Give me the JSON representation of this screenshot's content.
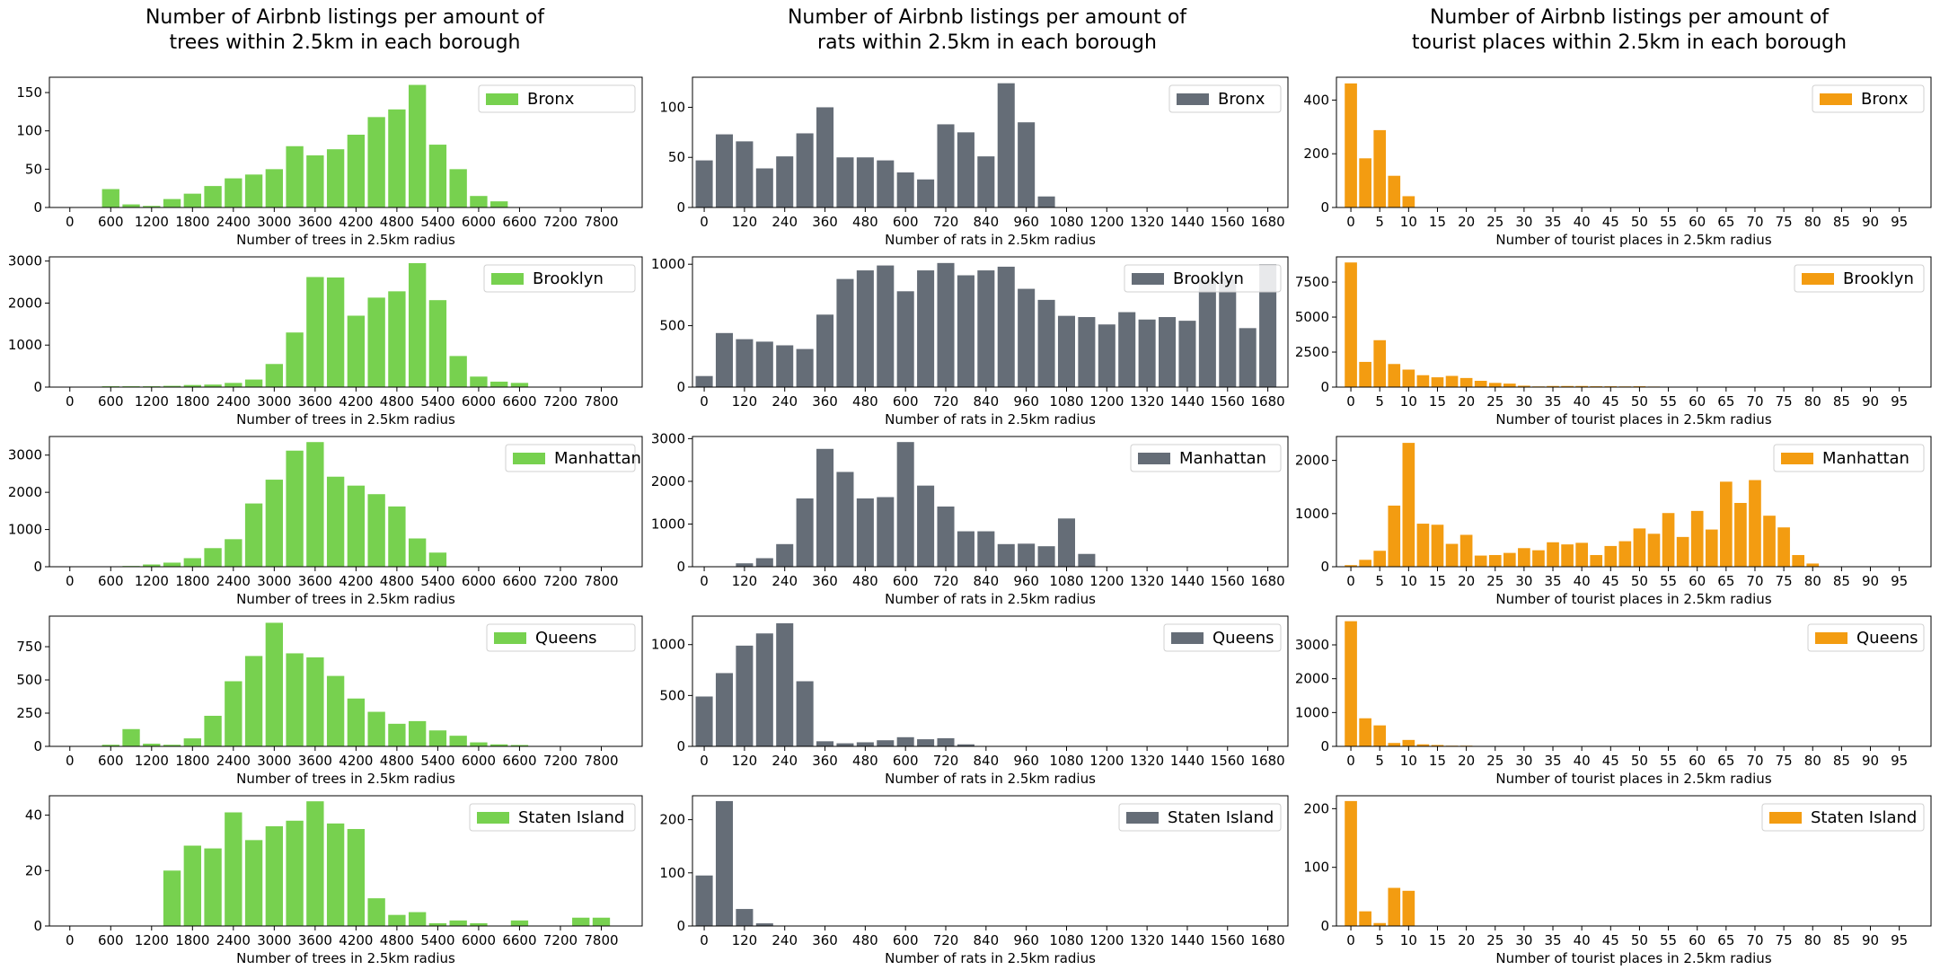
{
  "columns": [
    {
      "title": "Number of Airbnb listings per amount of\ntrees within 2.5km in each borough",
      "xlabel": "Number of trees in 2.5km radius",
      "color": "#77d14f",
      "xticks": [
        0,
        600,
        1200,
        1800,
        2400,
        3000,
        3600,
        4200,
        4800,
        5400,
        6000,
        6600,
        7200,
        7800
      ],
      "bin_width": 300,
      "xlim": [
        -300,
        8400
      ]
    },
    {
      "title": "Number of Airbnb listings per amount of\nrats within 2.5km in each borough",
      "xlabel": "Number of rats in 2.5km radius",
      "color": "#656d77",
      "xticks": [
        0,
        120,
        240,
        360,
        480,
        600,
        720,
        840,
        960,
        1080,
        1200,
        1320,
        1440,
        1560,
        1680
      ],
      "bin_width": 60,
      "xlim": [
        -35,
        1740
      ]
    },
    {
      "title": "Number of Airbnb listings per amount of\ntourist places within 2.5km in each borough",
      "xlabel": "Number of tourist places in 2.5km radius",
      "color": "#f39c11",
      "xticks": [
        0,
        5,
        10,
        15,
        20,
        25,
        30,
        35,
        40,
        45,
        50,
        55,
        60,
        65,
        70,
        75,
        80,
        85,
        90,
        95
      ],
      "bin_width": 2.5,
      "xlim": [
        -2.5,
        100.5
      ]
    }
  ],
  "chart_data": [
    {
      "type": "bar",
      "borough": "Bronx",
      "legend": "Bronx",
      "variable": "trees",
      "x": [
        600,
        900,
        1200,
        1500,
        1800,
        2100,
        2400,
        2700,
        3000,
        3300,
        3600,
        3900,
        4200,
        4500,
        4800,
        5100,
        5400,
        5700,
        6000,
        6300
      ],
      "values": [
        24,
        4,
        2,
        11,
        18,
        28,
        38,
        43,
        50,
        80,
        68,
        76,
        95,
        118,
        128,
        160,
        82,
        50,
        15,
        8
      ],
      "ylim": [
        0,
        170
      ],
      "yticks": [
        0,
        50,
        100,
        150
      ]
    },
    {
      "type": "bar",
      "borough": "Bronx",
      "legend": "Bronx",
      "variable": "rats",
      "x": [
        0,
        60,
        120,
        180,
        240,
        300,
        360,
        420,
        480,
        540,
        600,
        660,
        720,
        780,
        840,
        900,
        960,
        1020
      ],
      "values": [
        47,
        73,
        66,
        39,
        51,
        74,
        100,
        50,
        50,
        47,
        35,
        28,
        83,
        75,
        51,
        124,
        85,
        11
      ],
      "ylim": [
        0,
        130
      ],
      "yticks": [
        0,
        50,
        100
      ]
    },
    {
      "type": "bar",
      "borough": "Bronx",
      "legend": "Bronx",
      "variable": "tourist places",
      "x": [
        0,
        2.5,
        5,
        7.5,
        10
      ],
      "values": [
        462,
        183,
        288,
        118,
        42
      ],
      "ylim": [
        0,
        485
      ],
      "yticks": [
        0,
        200,
        400
      ]
    },
    {
      "type": "bar",
      "borough": "Brooklyn",
      "legend": "Brooklyn",
      "variable": "trees",
      "x": [
        300,
        600,
        900,
        1200,
        1500,
        1800,
        2100,
        2400,
        2700,
        3000,
        3300,
        3600,
        3900,
        4200,
        4500,
        4800,
        5100,
        5400,
        5700,
        6000,
        6300,
        6600
      ],
      "values": [
        10,
        20,
        20,
        20,
        30,
        50,
        60,
        100,
        180,
        550,
        1300,
        2620,
        2610,
        1700,
        2130,
        2280,
        2950,
        2070,
        740,
        250,
        130,
        100
      ],
      "ylim": [
        0,
        3100
      ],
      "yticks": [
        0,
        1000,
        2000,
        3000
      ]
    },
    {
      "type": "bar",
      "borough": "Brooklyn",
      "legend": "Brooklyn",
      "variable": "rats",
      "x": [
        0,
        60,
        120,
        180,
        240,
        300,
        360,
        420,
        480,
        540,
        600,
        660,
        720,
        780,
        840,
        900,
        960,
        1020,
        1080,
        1140,
        1200,
        1260,
        1320,
        1380,
        1440,
        1500,
        1560,
        1620,
        1680
      ],
      "values": [
        90,
        440,
        390,
        370,
        340,
        310,
        590,
        880,
        950,
        990,
        780,
        950,
        1010,
        910,
        950,
        980,
        800,
        710,
        580,
        570,
        510,
        610,
        550,
        570,
        540,
        870,
        880,
        480,
        1000
      ],
      "ylim": [
        0,
        1060
      ],
      "yticks": [
        0,
        500,
        1000
      ]
    },
    {
      "type": "bar",
      "borough": "Brooklyn",
      "legend": "Brooklyn",
      "variable": "tourist places",
      "x": [
        0,
        2.5,
        5,
        7.5,
        10,
        12.5,
        15,
        17.5,
        20,
        22.5,
        25,
        27.5,
        30,
        32.5,
        35,
        37.5,
        40,
        42.5,
        45,
        47.5,
        50,
        52.5,
        55
      ],
      "values": [
        8900,
        1800,
        3350,
        1650,
        1250,
        850,
        700,
        800,
        650,
        450,
        300,
        250,
        100,
        50,
        80,
        80,
        80,
        60,
        60,
        50,
        60,
        40,
        30
      ],
      "ylim": [
        0,
        9300
      ],
      "yticks": [
        0,
        2500,
        5000,
        7500
      ]
    },
    {
      "type": "bar",
      "borough": "Manhattan",
      "legend": "Manhattan",
      "variable": "trees",
      "x": [
        900,
        1200,
        1500,
        1800,
        2100,
        2400,
        2700,
        3000,
        3300,
        3600,
        3900,
        4200,
        4500,
        4800,
        5100,
        5400
      ],
      "values": [
        20,
        60,
        110,
        230,
        500,
        740,
        1700,
        2340,
        3120,
        3350,
        2420,
        2180,
        1950,
        1620,
        760,
        380
      ],
      "ylim": [
        0,
        3500
      ],
      "yticks": [
        0,
        1000,
        2000,
        3000
      ]
    },
    {
      "type": "bar",
      "borough": "Manhattan",
      "legend": "Manhattan",
      "variable": "rats",
      "x": [
        120,
        180,
        240,
        300,
        360,
        420,
        480,
        540,
        600,
        660,
        720,
        780,
        840,
        900,
        960,
        1020,
        1080,
        1140
      ],
      "values": [
        80,
        200,
        530,
        1600,
        2760,
        2220,
        1600,
        1630,
        2920,
        1900,
        1410,
        830,
        830,
        530,
        540,
        480,
        1130,
        300
      ],
      "ylim": [
        0,
        3050
      ],
      "yticks": [
        0,
        1000,
        2000,
        3000
      ]
    },
    {
      "type": "bar",
      "borough": "Manhattan",
      "legend": "Manhattan",
      "variable": "tourist places",
      "x": [
        0,
        2.5,
        5,
        7.5,
        10,
        12.5,
        15,
        17.5,
        20,
        22.5,
        25,
        27.5,
        30,
        32.5,
        35,
        37.5,
        40,
        42.5,
        45,
        47.5,
        50,
        52.5,
        55,
        57.5,
        60,
        62.5,
        65,
        67.5,
        70,
        72.5,
        75,
        77.5,
        80
      ],
      "values": [
        30,
        130,
        300,
        1150,
        2330,
        810,
        790,
        430,
        600,
        210,
        220,
        260,
        350,
        310,
        460,
        420,
        450,
        220,
        390,
        480,
        720,
        620,
        1010,
        560,
        1050,
        700,
        1600,
        1200,
        1630,
        960,
        740,
        220,
        60
      ],
      "ylim": [
        0,
        2450
      ],
      "yticks": [
        0,
        1000,
        2000
      ]
    },
    {
      "type": "bar",
      "borough": "Queens",
      "legend": "Queens",
      "variable": "trees",
      "x": [
        300,
        600,
        900,
        1200,
        1500,
        1800,
        2100,
        2400,
        2700,
        3000,
        3300,
        3600,
        3900,
        4200,
        4500,
        4800,
        5100,
        5400,
        5700,
        6000,
        6300,
        6600
      ],
      "values": [
        3,
        12,
        130,
        20,
        12,
        60,
        230,
        490,
        680,
        930,
        700,
        670,
        530,
        360,
        260,
        170,
        190,
        120,
        80,
        30,
        15,
        10
      ],
      "ylim": [
        0,
        980
      ],
      "yticks": [
        0,
        250,
        500,
        750
      ]
    },
    {
      "type": "bar",
      "borough": "Queens",
      "legend": "Queens",
      "variable": "rats",
      "x": [
        0,
        60,
        120,
        180,
        240,
        300,
        360,
        420,
        480,
        540,
        600,
        660,
        720,
        780
      ],
      "values": [
        490,
        720,
        990,
        1110,
        1210,
        640,
        50,
        30,
        40,
        60,
        90,
        70,
        80,
        20
      ],
      "ylim": [
        0,
        1280
      ],
      "yticks": [
        0,
        500,
        1000
      ]
    },
    {
      "type": "bar",
      "borough": "Queens",
      "legend": "Queens",
      "variable": "tourist places",
      "x": [
        0,
        2.5,
        5,
        7.5,
        10,
        12.5,
        15,
        17.5,
        20,
        22.5
      ],
      "values": [
        3700,
        830,
        620,
        100,
        190,
        60,
        40,
        20,
        20,
        10
      ],
      "ylim": [
        0,
        3850
      ],
      "yticks": [
        0,
        1000,
        2000,
        3000
      ]
    },
    {
      "type": "bar",
      "borough": "Staten Island",
      "legend": "Staten Island",
      "variable": "trees",
      "x": [
        1500,
        1800,
        2100,
        2400,
        2700,
        3000,
        3300,
        3600,
        3900,
        4200,
        4500,
        4800,
        5100,
        5400,
        5700,
        6000,
        6300,
        6600,
        6900,
        7200,
        7500,
        7800,
        8100
      ],
      "values": [
        20,
        29,
        28,
        41,
        31,
        36,
        38,
        45,
        37,
        35,
        10,
        4,
        5,
        1,
        2,
        1,
        0,
        2,
        0,
        0,
        3,
        3,
        0
      ],
      "ylim": [
        0,
        47
      ],
      "yticks": [
        0,
        20,
        40
      ]
    },
    {
      "type": "bar",
      "borough": "Staten Island",
      "legend": "Staten Island",
      "variable": "rats",
      "x": [
        0,
        60,
        120,
        180
      ],
      "values": [
        95,
        235,
        32,
        5
      ],
      "ylim": [
        0,
        245
      ],
      "yticks": [
        0,
        100,
        200
      ]
    },
    {
      "type": "bar",
      "borough": "Staten Island",
      "legend": "Staten Island",
      "variable": "tourist places",
      "x": [
        0,
        2.5,
        5,
        7.5,
        10
      ],
      "values": [
        213,
        25,
        5,
        65,
        60
      ],
      "ylim": [
        0,
        222
      ],
      "yticks": [
        0,
        100,
        200
      ]
    }
  ]
}
